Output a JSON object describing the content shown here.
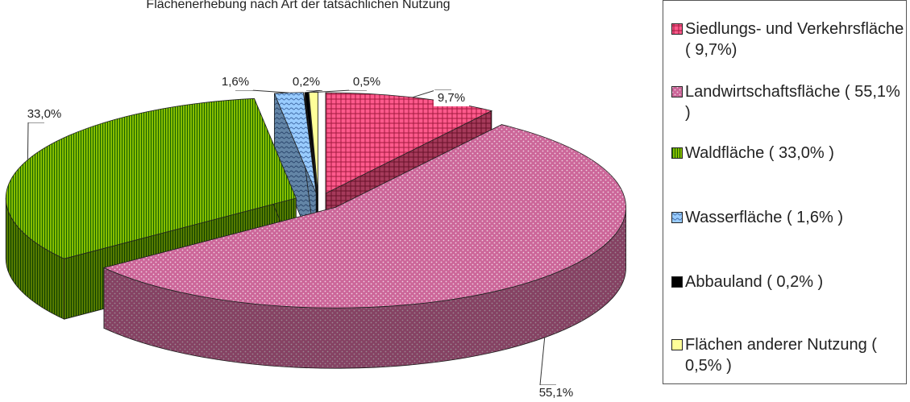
{
  "chart_data": {
    "type": "pie",
    "title": "Flächenerhebung nach Art der tatsächlichen Nutzung",
    "categories": [
      "Siedlungs- und Verkehrsfläche ( 9,7%)",
      "Landwirtschaftsfläche ( 55,1% )",
      "Waldfläche ( 33,0% )",
      "Wasserfläche ( 1,6% )",
      "Abbauland ( 0,2% )",
      "Flächen anderer Nutzung ( 0,5% )"
    ],
    "values": [
      9.7,
      55.1,
      33.0,
      1.6,
      0.2,
      0.5
    ],
    "value_labels": [
      "9,7%",
      "55,1%",
      "33,0%",
      "1,6%",
      "0,2%",
      "0,5%"
    ],
    "colors": [
      "#ff5a8c",
      "#cc6699",
      "#99cc00",
      "#99ccff",
      "#000000",
      "#ffff99"
    ],
    "legend": "right"
  }
}
